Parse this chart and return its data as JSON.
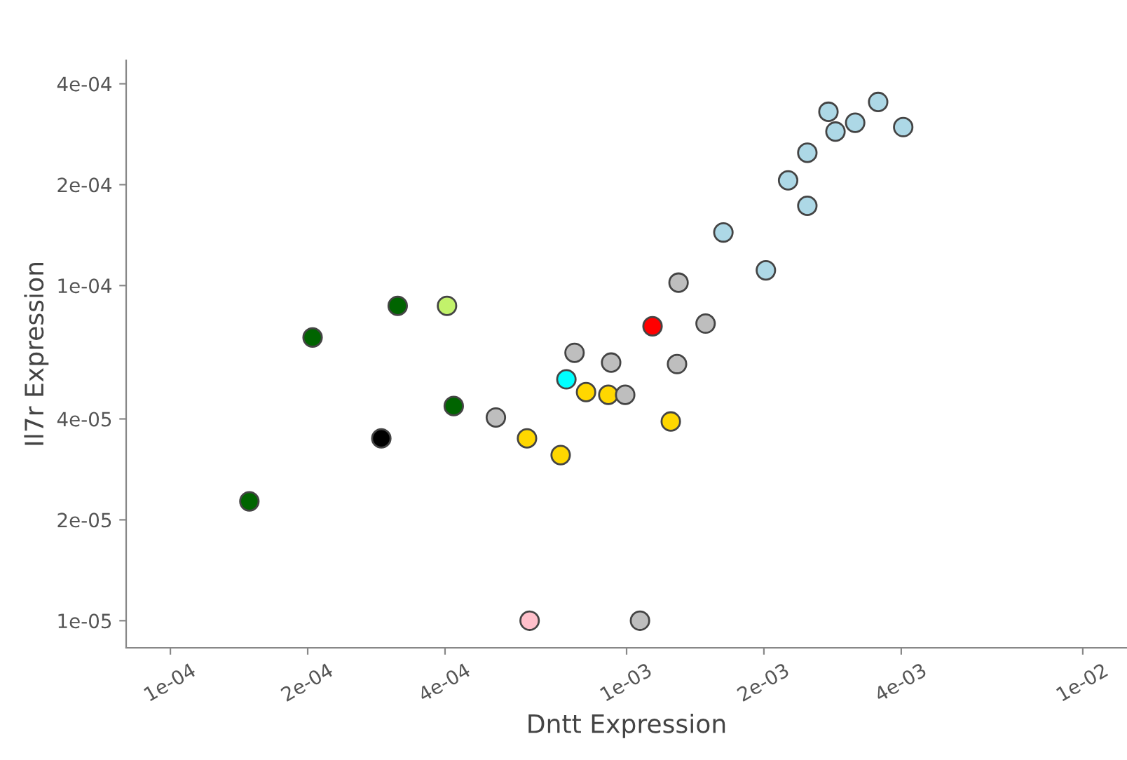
{
  "chart_data": {
    "type": "scatter",
    "xlabel": "Dntt Expression",
    "ylabel": "Il7r Expression",
    "log": "xy",
    "grid": false,
    "marker": "circle",
    "xlim": [
      8e-05,
      0.0125
    ],
    "ylim": [
      8.3e-06,
      0.00047
    ],
    "xticks": [
      {
        "value": 0.0001,
        "label": "1e-04"
      },
      {
        "value": 0.0002,
        "label": "2e-04"
      },
      {
        "value": 0.0004,
        "label": "4e-04"
      },
      {
        "value": 0.001,
        "label": "1e-03"
      },
      {
        "value": 0.002,
        "label": "2e-03"
      },
      {
        "value": 0.004,
        "label": "4e-03"
      },
      {
        "value": 0.01,
        "label": "1e-02"
      }
    ],
    "yticks": [
      {
        "value": 1e-05,
        "label": "1e-05"
      },
      {
        "value": 2e-05,
        "label": "2e-05"
      },
      {
        "value": 4e-05,
        "label": "4e-05"
      },
      {
        "value": 0.0001,
        "label": "1e-04"
      },
      {
        "value": 0.0002,
        "label": "2e-04"
      },
      {
        "value": 0.0004,
        "label": "4e-04"
      }
    ],
    "series": [
      {
        "x": [
          0.000149,
          0.000205,
          0.000315,
          0.000404,
          0.000418,
          0.00029,
          0.000517,
          0.000605,
          0.000717,
          0.000769,
          0.000738,
          0.000815,
          0.000912,
          0.000993,
          0.000925,
          0.000613,
          0.00107,
          0.00114,
          0.0013,
          0.00149,
          0.00129,
          0.00125,
          0.00163,
          0.00202,
          0.00226,
          0.00249,
          0.00249,
          0.00277,
          0.00287,
          0.00317,
          0.00356,
          0.00404
        ],
        "values": [
          2.27e-05,
          7e-05,
          8.7e-05,
          8.7e-05,
          4.37e-05,
          3.5e-05,
          4.04e-05,
          3.5e-05,
          3.12e-05,
          6.3e-05,
          5.25e-05,
          4.81e-05,
          4.72e-05,
          4.72e-05,
          5.89e-05,
          1e-05,
          1e-05,
          7.56e-05,
          0.000102,
          7.7e-05,
          5.83e-05,
          3.93e-05,
          0.000144,
          0.000111,
          0.000206,
          0.000173,
          0.000249,
          0.00033,
          0.000288,
          0.000306,
          0.000353,
          0.000297
        ],
        "colors": [
          "#006400",
          "#006400",
          "#006400",
          "#c2f26b",
          "#006400",
          "#000000",
          "#bebebe",
          "#ffd700",
          "#ffd700",
          "#bebebe",
          "#00ffff",
          "#ffd700",
          "#ffd700",
          "#bebebe",
          "#bebebe",
          "#ffc0cb",
          "#bebebe",
          "#ff0000",
          "#bebebe",
          "#bebebe",
          "#bebebe",
          "#ffd700",
          "#add8e6",
          "#add8e6",
          "#add8e6",
          "#add8e6",
          "#add8e6",
          "#add8e6",
          "#add8e6",
          "#add8e6",
          "#add8e6",
          "#add8e6"
        ]
      }
    ]
  }
}
